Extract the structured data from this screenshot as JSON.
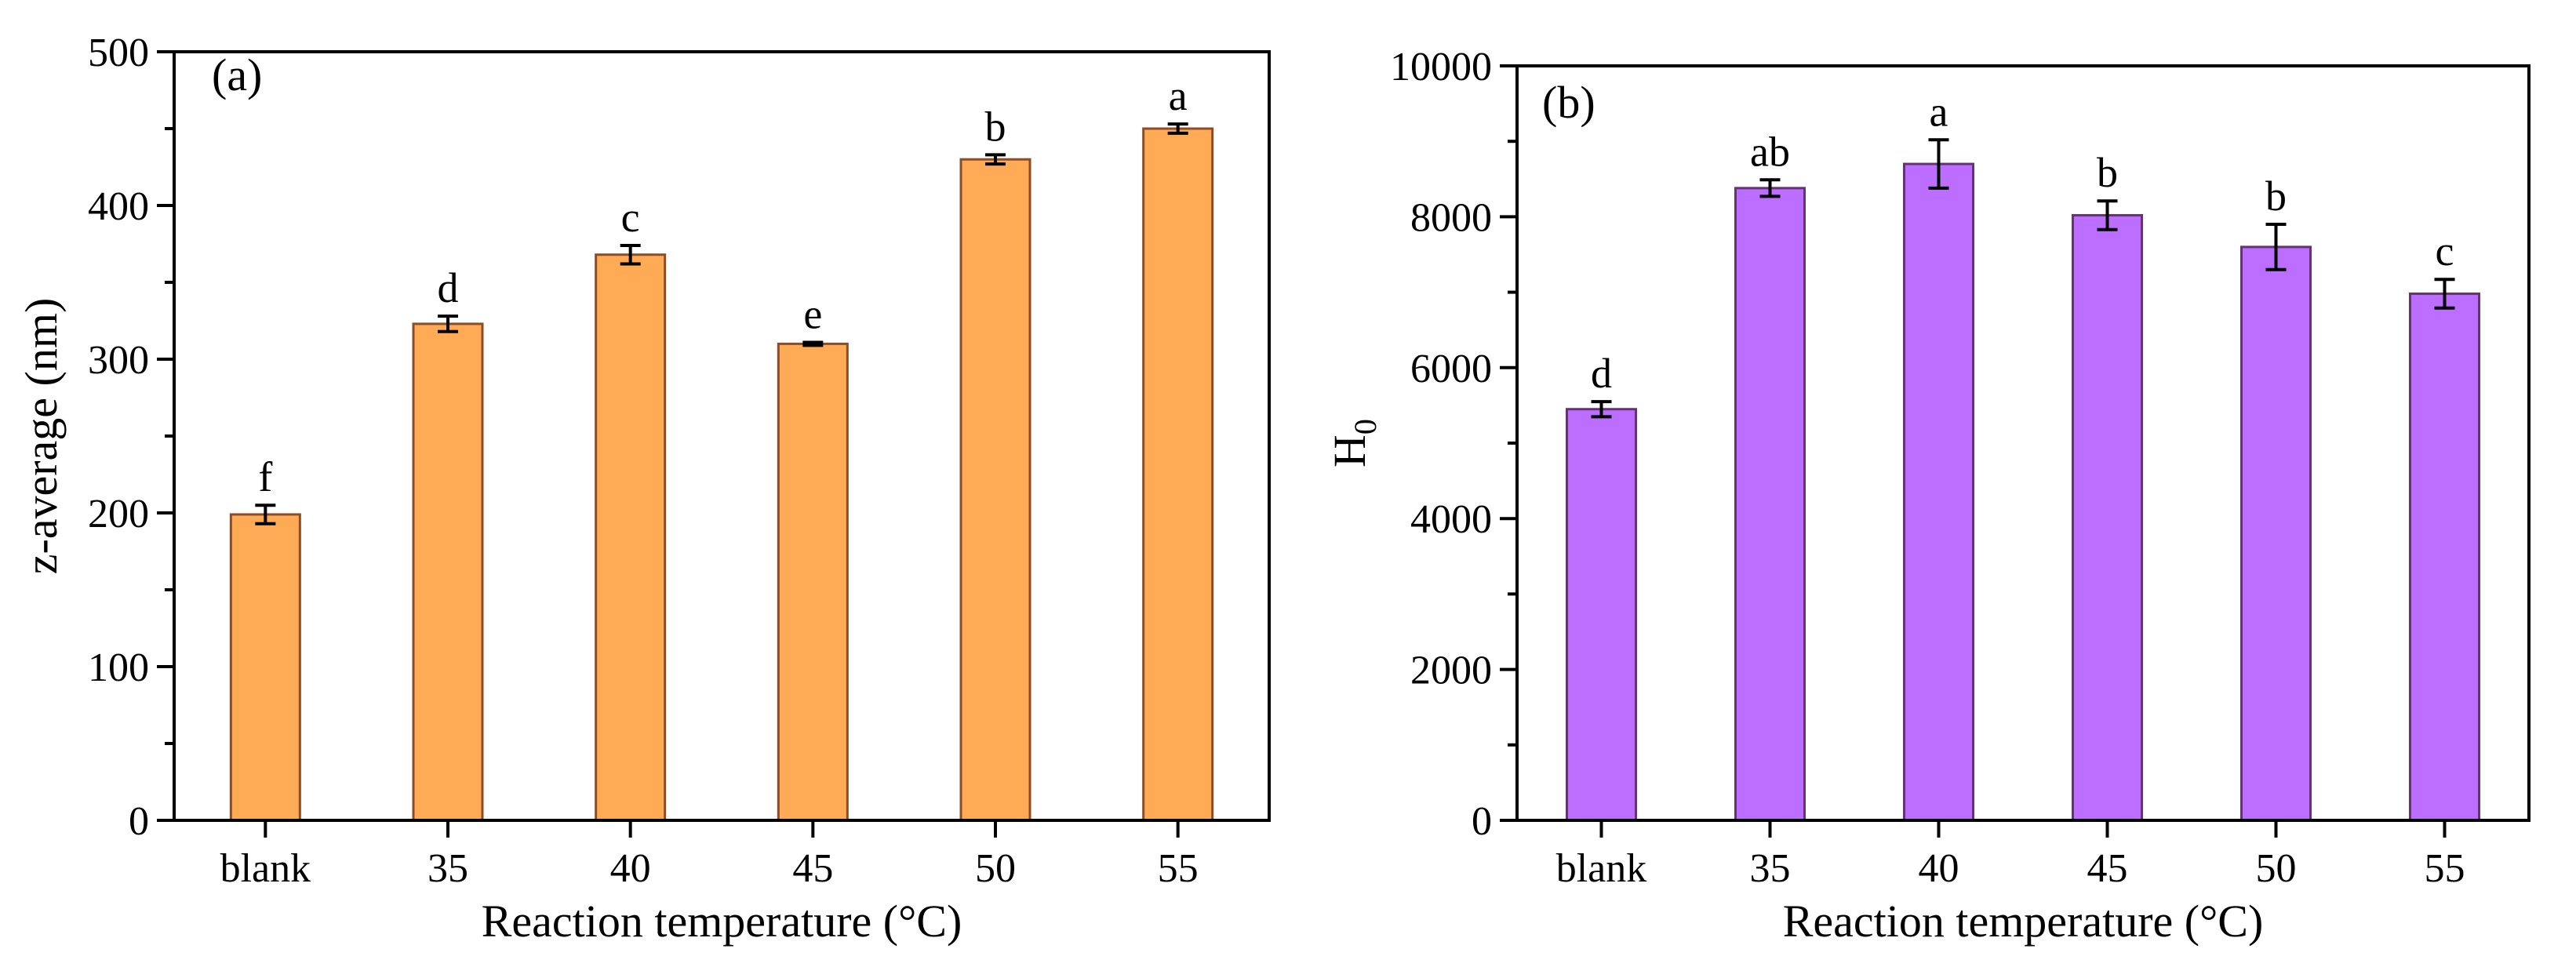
{
  "chart_data": [
    {
      "type": "bar",
      "panel_label": "(a)",
      "title": "",
      "xlabel": "Reaction temperature (°C)",
      "ylabel": "z-average (nm)",
      "ylabel_sub": "",
      "categories": [
        "blank",
        "35",
        "40",
        "45",
        "50",
        "55"
      ],
      "values": [
        199,
        323,
        368,
        310,
        430,
        450
      ],
      "errors": [
        6,
        5,
        6,
        1,
        3,
        3
      ],
      "significance": [
        "f",
        "d",
        "c",
        "e",
        "b",
        "a"
      ],
      "ylim": [
        0,
        500
      ],
      "yticks": [
        "0",
        "100",
        "200",
        "300",
        "400",
        "500"
      ],
      "bar_color": "#FFAA55",
      "grid": false,
      "legend": "none"
    },
    {
      "type": "bar",
      "panel_label": "(b)",
      "title": "",
      "xlabel": "Reaction temperature (°C)",
      "ylabel": "H",
      "ylabel_sub": "0",
      "categories": [
        "blank",
        "35",
        "40",
        "45",
        "50",
        "55"
      ],
      "values": [
        5450,
        8380,
        8700,
        8020,
        7600,
        6980
      ],
      "errors": [
        100,
        110,
        320,
        190,
        300,
        190
      ],
      "significance": [
        "d",
        "ab",
        "a",
        "b",
        "b",
        "c"
      ],
      "ylim": [
        0,
        10000
      ],
      "yticks": [
        "0",
        "2000",
        "4000",
        "6000",
        "8000",
        "10000"
      ],
      "bar_color": "#BB6EFF",
      "grid": false,
      "legend": "none"
    }
  ]
}
